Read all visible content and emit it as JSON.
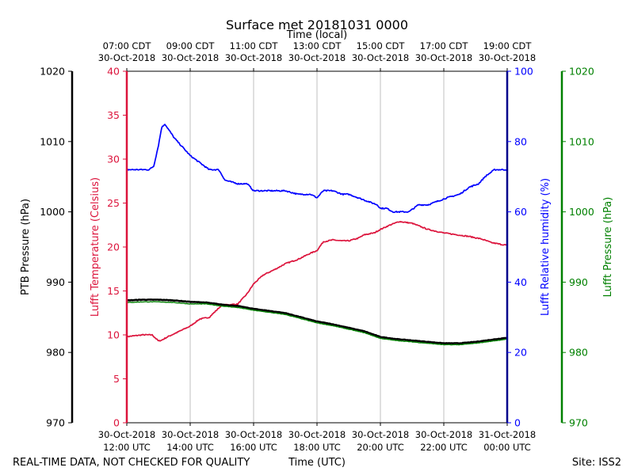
{
  "chart_data": {
    "type": "line",
    "title": "Surface met 20181031 0000",
    "top_axis_label": "Time (local)",
    "bottom_axis_label": "Time (UTC)",
    "footer_left": "REAL-TIME DATA, NOT CHECKED FOR QUALITY",
    "footer_right": "Site: ISS2",
    "x_range_hours": [
      12,
      24
    ],
    "x_ticks": [
      {
        "h": 12,
        "utc_date": "30-Oct-2018",
        "utc_time": "12:00 UTC"
      },
      {
        "h": 14,
        "utc_date": "30-Oct-2018",
        "utc_time": "14:00 UTC"
      },
      {
        "h": 16,
        "utc_date": "30-Oct-2018",
        "utc_time": "16:00 UTC"
      },
      {
        "h": 18,
        "utc_date": "30-Oct-2018",
        "utc_time": "18:00 UTC"
      },
      {
        "h": 20,
        "utc_date": "30-Oct-2018",
        "utc_time": "20:00 UTC"
      },
      {
        "h": 22,
        "utc_date": "30-Oct-2018",
        "utc_time": "22:00 UTC"
      },
      {
        "h": 24,
        "utc_date": "31-Oct-2018",
        "utc_time": "00:00 UTC"
      }
    ],
    "top_ticks": [
      {
        "h": 12,
        "local_time": "07:00 CDT",
        "local_date": "30-Oct-2018"
      },
      {
        "h": 14,
        "local_time": "09:00 CDT",
        "local_date": "30-Oct-2018"
      },
      {
        "h": 16,
        "local_time": "11:00 CDT",
        "local_date": "30-Oct-2018"
      },
      {
        "h": 18,
        "local_time": "13:00 CDT",
        "local_date": "30-Oct-2018"
      },
      {
        "h": 20,
        "local_time": "15:00 CDT",
        "local_date": "30-Oct-2018"
      },
      {
        "h": 22,
        "local_time": "17:00 CDT",
        "local_date": "30-Oct-2018"
      },
      {
        "h": 24,
        "local_time": "19:00 CDT",
        "local_date": "30-Oct-2018"
      }
    ],
    "axes": {
      "ptb_pressure": {
        "label": "PTB Pressure (hPa)",
        "range": [
          970,
          1020
        ],
        "ticks": [
          970,
          980,
          990,
          1000,
          1010,
          1020
        ],
        "color": "#000000"
      },
      "temperature": {
        "label": "Lufft Temperature (Celsius)",
        "range": [
          0,
          40
        ],
        "ticks": [
          0,
          5,
          10,
          15,
          20,
          25,
          30,
          35,
          40
        ],
        "color": "#dc143c"
      },
      "humidity": {
        "label": "Lufft Relative humidity (%)",
        "range": [
          0,
          100
        ],
        "ticks": [
          0,
          20,
          40,
          60,
          80,
          100
        ],
        "color": "#0000ff"
      },
      "lufft_pressure": {
        "label": "Lufft Pressure (hPa)",
        "range": [
          970,
          1020
        ],
        "ticks": [
          970,
          980,
          990,
          1000,
          1010,
          1020
        ],
        "color": "#008000"
      }
    },
    "series": [
      {
        "name": "Lufft Temperature",
        "axis": "temperature",
        "color": "#dc143c",
        "x": [
          12.0,
          12.5,
          12.8,
          13.0,
          13.1,
          13.3,
          13.6,
          14.0,
          14.3,
          14.6,
          15.0,
          15.5,
          15.8,
          16.0,
          16.3,
          16.7,
          17.0,
          17.4,
          17.8,
          18.0,
          18.2,
          18.5,
          18.8,
          19.0,
          19.3,
          19.5,
          19.8,
          20.0,
          20.3,
          20.6,
          21.0,
          21.5,
          22.0,
          22.4,
          22.8,
          23.2,
          23.5,
          23.8,
          24.0
        ],
        "y": [
          9.8,
          10.0,
          10.0,
          9.3,
          9.4,
          9.8,
          10.3,
          11.0,
          11.8,
          12.0,
          13.4,
          13.5,
          14.7,
          15.8,
          16.8,
          17.5,
          18.1,
          18.6,
          19.3,
          19.6,
          20.6,
          20.8,
          20.7,
          20.7,
          21.0,
          21.4,
          21.6,
          22.0,
          22.5,
          22.9,
          22.7,
          22.0,
          21.6,
          21.4,
          21.2,
          20.9,
          20.5,
          20.3,
          20.2
        ]
      },
      {
        "name": "Lufft Relative humidity",
        "axis": "humidity",
        "color": "#0000ff",
        "x": [
          12.0,
          12.5,
          12.7,
          12.85,
          13.0,
          13.1,
          13.2,
          13.35,
          13.5,
          13.8,
          14.0,
          14.3,
          14.6,
          14.9,
          15.1,
          15.5,
          15.8,
          16.0,
          16.3,
          16.7,
          17.0,
          17.4,
          17.8,
          18.0,
          18.2,
          18.5,
          18.8,
          19.0,
          19.3,
          19.6,
          19.9,
          20.0,
          20.2,
          20.4,
          20.6,
          20.9,
          21.2,
          21.5,
          21.8,
          22.1,
          22.5,
          22.8,
          23.1,
          23.3,
          23.6,
          23.8,
          24.0
        ],
        "y": [
          72,
          72,
          72,
          73,
          79,
          84,
          85,
          83,
          81,
          78,
          76,
          74,
          72,
          72,
          69,
          68,
          68,
          66,
          66,
          66,
          66,
          65,
          65,
          64,
          66,
          66,
          65,
          65,
          64,
          63,
          62,
          61,
          61,
          60,
          60,
          60,
          62,
          62,
          63,
          64,
          65,
          67,
          68,
          70,
          72,
          72,
          72
        ]
      },
      {
        "name": "PTB Pressure",
        "axis": "ptb_pressure",
        "color": "#000000",
        "x": [
          12.0,
          12.5,
          13.0,
          13.5,
          14.0,
          14.5,
          15.0,
          15.5,
          16.0,
          16.5,
          17.0,
          17.5,
          18.0,
          18.5,
          19.0,
          19.5,
          20.0,
          20.5,
          21.0,
          21.5,
          22.0,
          22.5,
          23.0,
          23.5,
          24.0
        ],
        "y": [
          987.4,
          987.5,
          987.5,
          987.4,
          987.2,
          987.1,
          986.8,
          986.6,
          986.2,
          985.9,
          985.6,
          985.0,
          984.4,
          984.0,
          983.5,
          983.0,
          982.2,
          981.9,
          981.7,
          981.5,
          981.3,
          981.3,
          981.5,
          981.8,
          982.1
        ]
      },
      {
        "name": "Lufft Pressure",
        "axis": "lufft_pressure",
        "color": "#008000",
        "x": [
          12.0,
          12.5,
          13.0,
          13.5,
          14.0,
          14.5,
          15.0,
          15.5,
          16.0,
          16.5,
          17.0,
          17.5,
          18.0,
          18.5,
          19.0,
          19.5,
          20.0,
          20.5,
          21.0,
          21.5,
          22.0,
          22.5,
          23.0,
          23.5,
          24.0
        ],
        "y": [
          987.1,
          987.2,
          987.2,
          987.1,
          986.9,
          986.9,
          986.6,
          986.4,
          986.0,
          985.7,
          985.4,
          984.8,
          984.2,
          983.8,
          983.3,
          982.8,
          982.0,
          981.7,
          981.5,
          981.3,
          981.1,
          981.1,
          981.3,
          981.6,
          981.9
        ]
      }
    ]
  }
}
